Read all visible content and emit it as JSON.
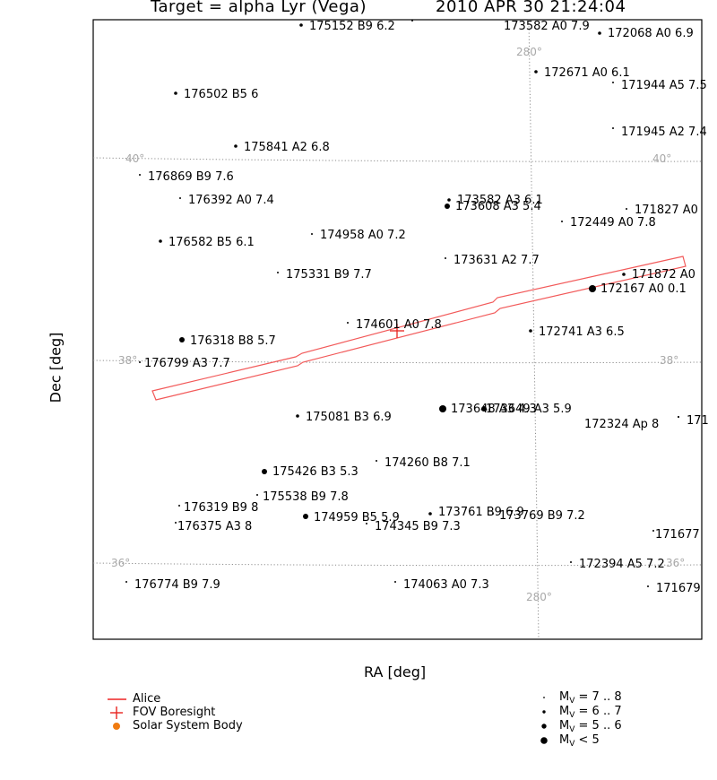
{
  "title": {
    "target": "Target = alpha Lyr (Vega)",
    "datetime": "2010 APR 30 21:24:04"
  },
  "chart_data": {
    "type": "scatter",
    "xlabel": "RA [deg]",
    "ylabel": "Dec [deg]",
    "grid": {
      "dec_lines": [
        {
          "label": "40°",
          "value": 40
        },
        {
          "label": "38°",
          "value": 38
        },
        {
          "label": "36°",
          "value": 36
        }
      ],
      "ra_lines": [
        {
          "label": "280°",
          "value": 280
        }
      ]
    },
    "stars": [
      {
        "label": "175152 B9 6.2",
        "mag": 6.2
      },
      {
        "label": "173582 A0 7.9",
        "mag": 7.9
      },
      {
        "label": "172068 A0 6.9",
        "mag": 6.9
      },
      {
        "label": "172671 A0 6.1",
        "mag": 6.1
      },
      {
        "label": "171944 A5 7.5",
        "mag": 7.5
      },
      {
        "label": "176502 B5 6",
        "mag": 6
      },
      {
        "label": "171945 A2 7.4",
        "mag": 7.4
      },
      {
        "label": "175841 A2 6.8",
        "mag": 6.8
      },
      {
        "label": "176869 B9 7.6",
        "mag": 7.6
      },
      {
        "label": "176392 A0 7.4",
        "mag": 7.4
      },
      {
        "label": "173582 A3 6.1",
        "mag": 6.1
      },
      {
        "label": "173608 A3 5.4",
        "mag": 5.4
      },
      {
        "label": "171827 A0",
        "mag": 7.3
      },
      {
        "label": "172449 A0 7.8",
        "mag": 7.8
      },
      {
        "label": "174958 A0 7.2",
        "mag": 7.2
      },
      {
        "label": "176582 B5 6.1",
        "mag": 6.1
      },
      {
        "label": "173631 A2 7.7",
        "mag": 7.7
      },
      {
        "label": "175331 B9 7.7",
        "mag": 7.7
      },
      {
        "label": "171872 A0",
        "mag": 6.5
      },
      {
        "label": "172167 A0 0.1",
        "mag": 0.1
      },
      {
        "label": "174601 A0 7.8",
        "mag": 7.8
      },
      {
        "label": "176318 B8 5.7",
        "mag": 5.7
      },
      {
        "label": "172741 A3 6.5",
        "mag": 6.5
      },
      {
        "label": "176799 A3 7.7",
        "mag": 7.7
      },
      {
        "label": "173648 A3 4.3",
        "mag": 4.3
      },
      {
        "label": "173649 A3 5.9",
        "mag": 5.9
      },
      {
        "label": "175081 B3 6.9",
        "mag": 6.9
      },
      {
        "label": "172324 Ap 8",
        "mag": 8
      },
      {
        "label": "171",
        "mag": 7.5
      },
      {
        "label": "174260 B8 7.1",
        "mag": 7.1
      },
      {
        "label": "175426 B3 5.3",
        "mag": 5.3
      },
      {
        "label": "175538 B9 7.8",
        "mag": 7.8
      },
      {
        "label": "176319 B9 8",
        "mag": 8
      },
      {
        "label": "173761 B9 6.9",
        "mag": 6.9
      },
      {
        "label": "173769 B9 7.2",
        "mag": 7.2
      },
      {
        "label": "176375 A3 8",
        "mag": 8
      },
      {
        "label": "174959 B5 5.9",
        "mag": 5.9
      },
      {
        "label": "174345 B9 7.3",
        "mag": 7.3
      },
      {
        "label": "171677",
        "mag": 7.9
      },
      {
        "label": "172394 A5 7.2",
        "mag": 7.2
      },
      {
        "label": "176774 B9 7.9",
        "mag": 7.9
      },
      {
        "label": "174063 A0 7.3",
        "mag": 7.3
      },
      {
        "label": "171679",
        "mag": 7.6
      }
    ],
    "fov_boresight": {
      "label": "FOV Boresight"
    },
    "alice_slit": {
      "label": "Alice"
    }
  },
  "legend": {
    "alice": "Alice",
    "fov": "FOV Boresight",
    "ssb": "Solar System Body",
    "mv_prefix": "M",
    "mv_sub": "V",
    "mag_ranges": [
      " = 7 .. 8",
      " = 6 .. 7",
      " = 5 .. 6",
      " < 5"
    ]
  },
  "colors": {
    "alice": "#f25a5a",
    "fov": "#e8231e",
    "ssb": "#f07b10",
    "grid": "#8c8c8c",
    "star": "#000000"
  }
}
